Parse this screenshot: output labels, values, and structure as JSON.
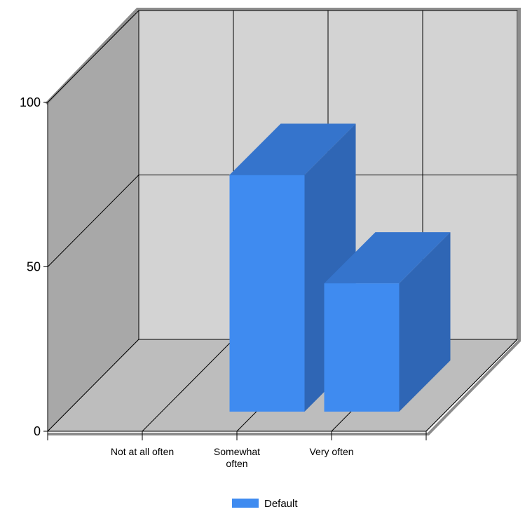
{
  "chart_data": {
    "type": "bar",
    "categories": [
      "Not at all often",
      "Somewhat often",
      "Very often"
    ],
    "series": [
      {
        "name": "Default",
        "values": [
          0,
          72,
          39
        ]
      }
    ],
    "ylim": [
      0,
      100
    ],
    "yticks": [
      0,
      50,
      100
    ],
    "grid": true,
    "legend_position": "bottom",
    "style": "3d",
    "colors": {
      "bar_front": "#3f8bf0",
      "bar_top": "#3574cc",
      "bar_side": "#2f66b5",
      "back_wall": "#d3d3d3",
      "left_wall": "#a8a8a8",
      "floor": "#bdbdbd"
    }
  }
}
